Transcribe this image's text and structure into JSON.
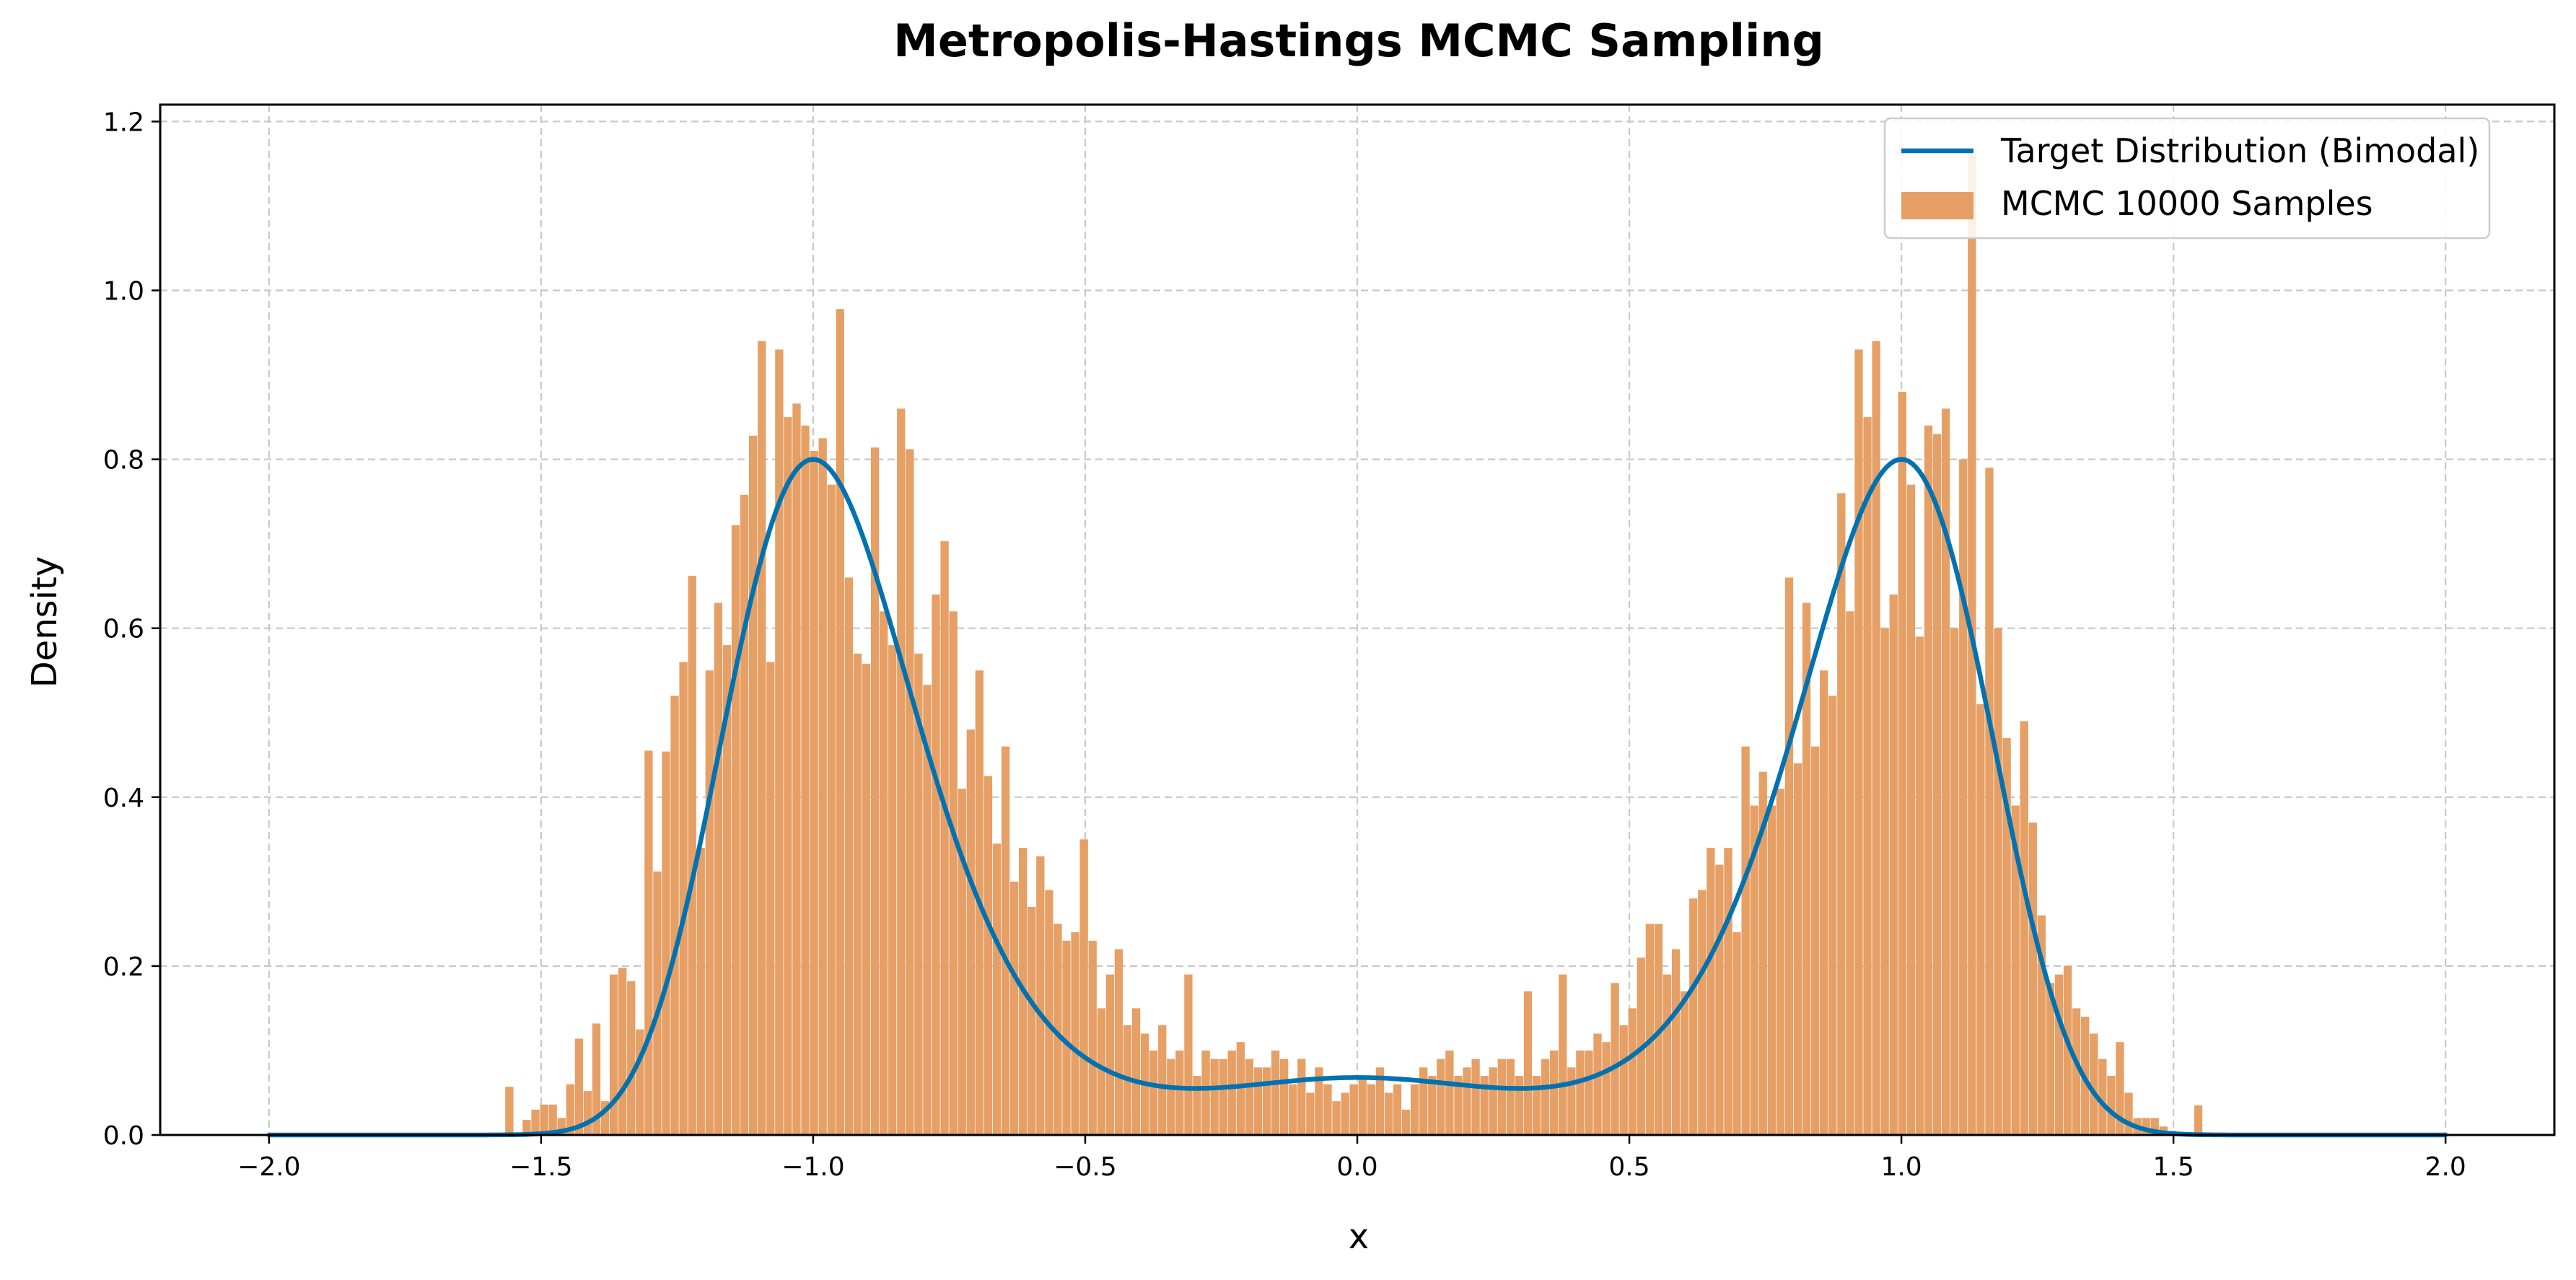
{
  "chart_data": {
    "type": "bar",
    "title": "Metropolis-Hastings MCMC Sampling",
    "xlabel": "x",
    "ylabel": "Density",
    "xlim": [
      -2.2,
      2.2
    ],
    "ylim": [
      0,
      1.22
    ],
    "xticks": [
      -2.0,
      -1.5,
      -1.0,
      -0.5,
      0.0,
      0.5,
      1.0,
      1.5,
      2.0
    ],
    "xtick_labels": [
      "−2.0",
      "−1.5",
      "−1.0",
      "−0.5",
      "0.0",
      "0.5",
      "1.0",
      "1.5",
      "2.0"
    ],
    "yticks": [
      0.0,
      0.2,
      0.4,
      0.6,
      0.8,
      1.0,
      1.2
    ],
    "ytick_labels": [
      "0.0",
      "0.2",
      "0.4",
      "0.6",
      "0.8",
      "1.0",
      "1.2"
    ],
    "grid": true,
    "legend_position": "top-right",
    "series": [
      {
        "name": "Target Distribution (Bimodal)",
        "kind": "line",
        "color": "#0072B2",
        "function": "bimodal_double_well",
        "x_range": [
          -2.0,
          2.0
        ],
        "peaks": [
          {
            "x": -1.0,
            "y": 0.8
          },
          {
            "x": 1.0,
            "y": 0.8
          }
        ],
        "center_value": 0.068
      },
      {
        "name": "MCMC 10000 Samples",
        "kind": "histogram",
        "color": "#E69F65",
        "bin_width": 0.0158,
        "bins": [
          [
            -1.558,
            0.057
          ],
          [
            -1.542,
            0.0
          ],
          [
            -1.526,
            0.018
          ],
          [
            -1.51,
            0.03
          ],
          [
            -1.494,
            0.036
          ],
          [
            -1.478,
            0.036
          ],
          [
            -1.462,
            0.02
          ],
          [
            -1.446,
            0.06
          ],
          [
            -1.43,
            0.114
          ],
          [
            -1.414,
            0.052
          ],
          [
            -1.398,
            0.132
          ],
          [
            -1.382,
            0.04
          ],
          [
            -1.366,
            0.19
          ],
          [
            -1.35,
            0.198
          ],
          [
            -1.334,
            0.182
          ],
          [
            -1.318,
            0.125
          ],
          [
            -1.302,
            0.455
          ],
          [
            -1.286,
            0.312
          ],
          [
            -1.27,
            0.454
          ],
          [
            -1.254,
            0.52
          ],
          [
            -1.238,
            0.56
          ],
          [
            -1.222,
            0.662
          ],
          [
            -1.206,
            0.34
          ],
          [
            -1.19,
            0.55
          ],
          [
            -1.174,
            0.63
          ],
          [
            -1.158,
            0.58
          ],
          [
            -1.142,
            0.722
          ],
          [
            -1.126,
            0.758
          ],
          [
            -1.11,
            0.828
          ],
          [
            -1.094,
            0.94
          ],
          [
            -1.078,
            0.56
          ],
          [
            -1.062,
            0.93
          ],
          [
            -1.046,
            0.85
          ],
          [
            -1.03,
            0.866
          ],
          [
            -1.014,
            0.84
          ],
          [
            -0.998,
            0.81
          ],
          [
            -0.982,
            0.825
          ],
          [
            -0.966,
            0.77
          ],
          [
            -0.95,
            0.978
          ],
          [
            -0.934,
            0.66
          ],
          [
            -0.918,
            0.57
          ],
          [
            -0.902,
            0.558
          ],
          [
            -0.886,
            0.814
          ],
          [
            -0.87,
            0.62
          ],
          [
            -0.854,
            0.58
          ],
          [
            -0.838,
            0.86
          ],
          [
            -0.822,
            0.812
          ],
          [
            -0.806,
            0.57
          ],
          [
            -0.79,
            0.533
          ],
          [
            -0.774,
            0.64
          ],
          [
            -0.758,
            0.703
          ],
          [
            -0.742,
            0.62
          ],
          [
            -0.726,
            0.41
          ],
          [
            -0.71,
            0.48
          ],
          [
            -0.694,
            0.55
          ],
          [
            -0.678,
            0.425
          ],
          [
            -0.662,
            0.345
          ],
          [
            -0.646,
            0.46
          ],
          [
            -0.63,
            0.3
          ],
          [
            -0.614,
            0.34
          ],
          [
            -0.598,
            0.27
          ],
          [
            -0.582,
            0.33
          ],
          [
            -0.566,
            0.29
          ],
          [
            -0.55,
            0.25
          ],
          [
            -0.534,
            0.23
          ],
          [
            -0.518,
            0.24
          ],
          [
            -0.502,
            0.35
          ],
          [
            -0.486,
            0.23
          ],
          [
            -0.47,
            0.15
          ],
          [
            -0.454,
            0.19
          ],
          [
            -0.438,
            0.22
          ],
          [
            -0.422,
            0.13
          ],
          [
            -0.406,
            0.15
          ],
          [
            -0.39,
            0.12
          ],
          [
            -0.374,
            0.1
          ],
          [
            -0.358,
            0.13
          ],
          [
            -0.342,
            0.09
          ],
          [
            -0.326,
            0.1
          ],
          [
            -0.31,
            0.19
          ],
          [
            -0.294,
            0.07
          ],
          [
            -0.278,
            0.1
          ],
          [
            -0.262,
            0.09
          ],
          [
            -0.246,
            0.09
          ],
          [
            -0.23,
            0.1
          ],
          [
            -0.214,
            0.11
          ],
          [
            -0.198,
            0.09
          ],
          [
            -0.182,
            0.08
          ],
          [
            -0.166,
            0.08
          ],
          [
            -0.15,
            0.1
          ],
          [
            -0.134,
            0.09
          ],
          [
            -0.118,
            0.06
          ],
          [
            -0.102,
            0.09
          ],
          [
            -0.086,
            0.05
          ],
          [
            -0.07,
            0.08
          ],
          [
            -0.054,
            0.06
          ],
          [
            -0.038,
            0.04
          ],
          [
            -0.022,
            0.05
          ],
          [
            -0.006,
            0.06
          ],
          [
            0.01,
            0.07
          ],
          [
            0.026,
            0.06
          ],
          [
            0.042,
            0.08
          ],
          [
            0.058,
            0.05
          ],
          [
            0.074,
            0.06
          ],
          [
            0.09,
            0.03
          ],
          [
            0.106,
            0.06
          ],
          [
            0.122,
            0.08
          ],
          [
            0.138,
            0.07
          ],
          [
            0.154,
            0.09
          ],
          [
            0.17,
            0.1
          ],
          [
            0.186,
            0.07
          ],
          [
            0.202,
            0.08
          ],
          [
            0.218,
            0.09
          ],
          [
            0.234,
            0.07
          ],
          [
            0.25,
            0.08
          ],
          [
            0.266,
            0.09
          ],
          [
            0.282,
            0.09
          ],
          [
            0.298,
            0.07
          ],
          [
            0.314,
            0.17
          ],
          [
            0.33,
            0.07
          ],
          [
            0.346,
            0.09
          ],
          [
            0.362,
            0.1
          ],
          [
            0.378,
            0.19
          ],
          [
            0.394,
            0.08
          ],
          [
            0.41,
            0.1
          ],
          [
            0.426,
            0.1
          ],
          [
            0.442,
            0.12
          ],
          [
            0.458,
            0.11
          ],
          [
            0.474,
            0.18
          ],
          [
            0.49,
            0.13
          ],
          [
            0.506,
            0.15
          ],
          [
            0.522,
            0.21
          ],
          [
            0.538,
            0.25
          ],
          [
            0.554,
            0.25
          ],
          [
            0.57,
            0.19
          ],
          [
            0.586,
            0.22
          ],
          [
            0.602,
            0.17
          ],
          [
            0.618,
            0.28
          ],
          [
            0.634,
            0.29
          ],
          [
            0.65,
            0.34
          ],
          [
            0.666,
            0.32
          ],
          [
            0.682,
            0.34
          ],
          [
            0.698,
            0.24
          ],
          [
            0.714,
            0.46
          ],
          [
            0.73,
            0.39
          ],
          [
            0.746,
            0.43
          ],
          [
            0.762,
            0.39
          ],
          [
            0.778,
            0.41
          ],
          [
            0.794,
            0.66
          ],
          [
            0.81,
            0.44
          ],
          [
            0.826,
            0.63
          ],
          [
            0.842,
            0.46
          ],
          [
            0.858,
            0.55
          ],
          [
            0.874,
            0.52
          ],
          [
            0.89,
            0.76
          ],
          [
            0.906,
            0.62
          ],
          [
            0.922,
            0.93
          ],
          [
            0.938,
            0.85
          ],
          [
            0.954,
            0.94
          ],
          [
            0.97,
            0.6
          ],
          [
            0.986,
            0.64
          ],
          [
            1.002,
            0.88
          ],
          [
            1.018,
            0.77
          ],
          [
            1.034,
            0.59
          ],
          [
            1.05,
            0.84
          ],
          [
            1.066,
            0.83
          ],
          [
            1.082,
            0.86
          ],
          [
            1.098,
            0.6
          ],
          [
            1.114,
            0.8
          ],
          [
            1.13,
            1.16
          ],
          [
            1.146,
            0.51
          ],
          [
            1.162,
            0.79
          ],
          [
            1.178,
            0.6
          ],
          [
            1.194,
            0.47
          ],
          [
            1.21,
            0.39
          ],
          [
            1.226,
            0.49
          ],
          [
            1.242,
            0.37
          ],
          [
            1.258,
            0.26
          ],
          [
            1.274,
            0.18
          ],
          [
            1.29,
            0.19
          ],
          [
            1.306,
            0.2
          ],
          [
            1.322,
            0.15
          ],
          [
            1.338,
            0.14
          ],
          [
            1.354,
            0.12
          ],
          [
            1.37,
            0.09
          ],
          [
            1.386,
            0.07
          ],
          [
            1.402,
            0.11
          ],
          [
            1.418,
            0.05
          ],
          [
            1.434,
            0.02
          ],
          [
            1.45,
            0.02
          ],
          [
            1.466,
            0.02
          ],
          [
            1.482,
            0.01
          ],
          [
            1.498,
            0.005
          ],
          [
            1.514,
            0.0
          ],
          [
            1.53,
            0.0
          ],
          [
            1.546,
            0.035
          ]
        ]
      }
    ]
  }
}
